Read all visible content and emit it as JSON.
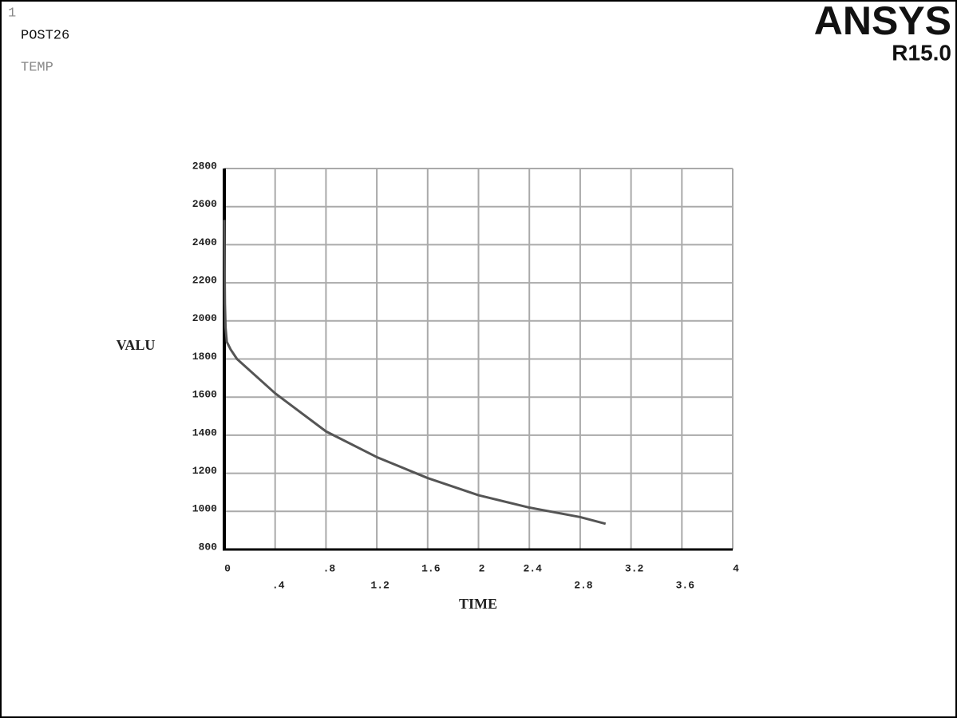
{
  "window_number": "1",
  "header": {
    "module": "POST26",
    "variable": "TEMP"
  },
  "logo": {
    "brand": "ANSYS",
    "version": "R15.0"
  },
  "chart_data": {
    "type": "line",
    "xlabel": "TIME",
    "ylabel": "VALU",
    "xlim": [
      0,
      4
    ],
    "xticks": [
      0,
      {
        "value": 0.4,
        "label": ".4"
      },
      {
        "value": 0.8,
        "label": ".8"
      },
      1.2,
      1.6,
      2,
      2.4,
      2.8,
      3.2,
      3.6,
      4
    ],
    "ylim": [
      800,
      2800
    ],
    "yticks": [
      800,
      1000,
      1200,
      1400,
      1600,
      1800,
      2000,
      2200,
      2400,
      2600,
      2800
    ],
    "grid": true,
    "series": [
      {
        "name": "TEMP",
        "color": "#555555",
        "x": [
          0,
          0.005,
          0.01,
          0.02,
          0.05,
          0.1,
          0.4,
          0.8,
          1.2,
          1.6,
          2,
          2.4,
          2.8,
          3.0
        ],
        "values": [
          2530,
          2090,
          1965,
          1890,
          1850,
          1800,
          1620,
          1420,
          1285,
          1175,
          1085,
          1020,
          970,
          935
        ]
      }
    ]
  }
}
